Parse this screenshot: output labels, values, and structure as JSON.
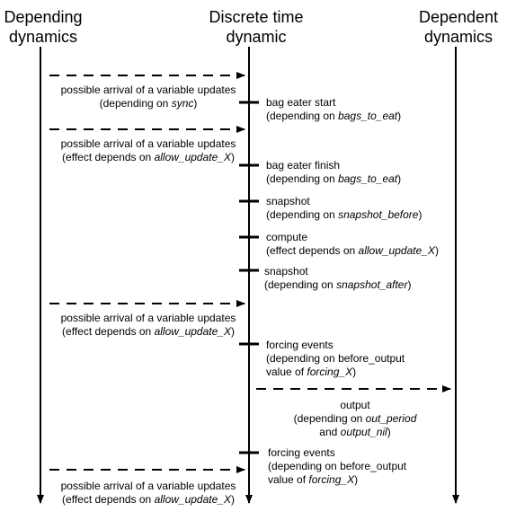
{
  "headers": {
    "left": [
      "Depending",
      "dynamics"
    ],
    "center": [
      "Discrete time",
      "dynamic"
    ],
    "right": [
      "Dependent",
      "dynamics"
    ]
  },
  "left_notes": [
    {
      "line1": "possible arrival of a variable updates",
      "pre": "(depending on ",
      "em": "sync",
      "post": ")"
    },
    {
      "line1": "possible arrival of a variable updates",
      "pre": "(effect depends on ",
      "em": "allow_update_X",
      "post": ")"
    },
    {
      "line1": "possible arrival of a variable updates",
      "pre": "(effect depends on ",
      "em": "allow_update_X",
      "post": ")"
    },
    {
      "line1": "possible arrival of a variable updates",
      "pre": "(effect depends on ",
      "em": "allow_update_X",
      "post": ")"
    }
  ],
  "events": [
    {
      "title": "bag eater start",
      "pre": "(depending on ",
      "em": "bags_to_eat",
      "post": ")"
    },
    {
      "title": "bag eater finish",
      "pre": "(depending on ",
      "em": "bags_to_eat",
      "post": ")"
    },
    {
      "title": "snapshot",
      "pre": "(depending on ",
      "em": "snapshot_before",
      "post": ")"
    },
    {
      "title": "compute",
      "pre": "(effect depends on ",
      "em": "allow_update_X",
      "post": ")"
    },
    {
      "title": "snapshot",
      "pre": "(depending on ",
      "em": "snapshot_after",
      "post": ")"
    },
    {
      "title": "forcing events",
      "line2": "(depending on before_output",
      "pre": "value of ",
      "em": "forcing_X",
      "post": ")"
    },
    {
      "title": "forcing events",
      "line2": "(depending on before_output",
      "pre": "value of ",
      "em": "forcing_X",
      "post": ")"
    }
  ],
  "output": {
    "title": "output",
    "l2pre": "(depending on ",
    "l2em": "out_period",
    "l3pre": "and ",
    "l3em": "output_nil",
    "l3post": ")"
  }
}
